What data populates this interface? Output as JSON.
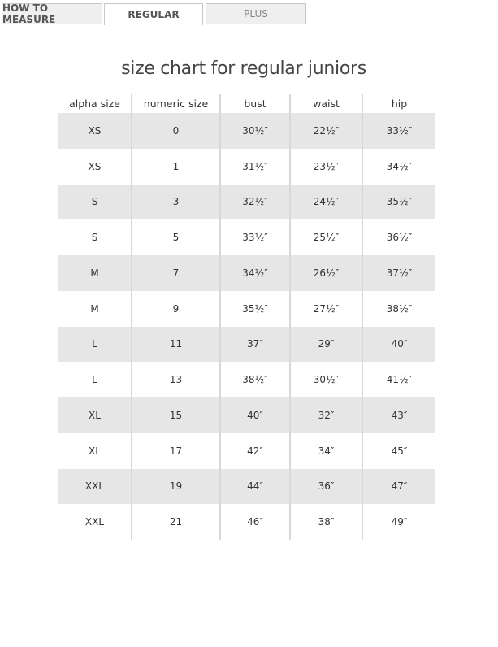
{
  "tabs": [
    {
      "label": "HOW TO MEASURE"
    },
    {
      "label": "REGULAR",
      "active": true
    },
    {
      "label": "PLUS"
    }
  ],
  "title": "size chart for regular juniors",
  "table": {
    "headers": [
      "alpha size",
      "numeric size",
      "bust",
      "waist",
      "hip"
    ],
    "rows": [
      [
        "XS",
        "0",
        "30½″",
        "22½″",
        "33½″"
      ],
      [
        "XS",
        "1",
        "31½″",
        "23½″",
        "34½″"
      ],
      [
        "S",
        "3",
        "32½″",
        "24½″",
        "35½″"
      ],
      [
        "S",
        "5",
        "33½″",
        "25½″",
        "36½″"
      ],
      [
        "M",
        "7",
        "34½″",
        "26½″",
        "37½″"
      ],
      [
        "M",
        "9",
        "35½″",
        "27½″",
        "38½″"
      ],
      [
        "L",
        "11",
        "37″",
        "29″",
        "40″"
      ],
      [
        "L",
        "13",
        "38½″",
        "30½″",
        "41½″"
      ],
      [
        "XL",
        "15",
        "40″",
        "32″",
        "43″"
      ],
      [
        "XL",
        "17",
        "42″",
        "34″",
        "45″"
      ],
      [
        "XXL",
        "19",
        "44″",
        "36″",
        "47″"
      ],
      [
        "XXL",
        "21",
        "46″",
        "38″",
        "49″"
      ]
    ]
  }
}
